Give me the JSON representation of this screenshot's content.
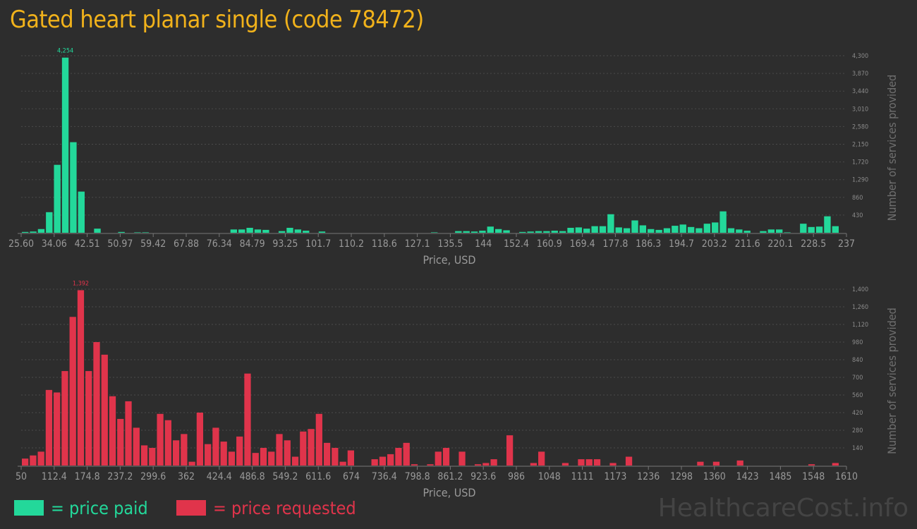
{
  "title": "Gated heart planar single (code 78472)",
  "legend": {
    "paid": "= price paid",
    "requested": "= price requested"
  },
  "watermark": "HealthcareCost.info",
  "colors": {
    "paid": "#23d89a",
    "requested": "#e0344b",
    "title": "#f1b21b",
    "background": "#2d2d2d"
  },
  "chart_data": [
    {
      "type": "bar",
      "series": [
        {
          "name": "price paid",
          "values": [
            20,
            30,
            90,
            500,
            1650,
            4254,
            2200,
            1000,
            0,
            100,
            0,
            0,
            20,
            0,
            10,
            10,
            0,
            0,
            0,
            0,
            0,
            0,
            0,
            0,
            0,
            0,
            80,
            80,
            120,
            80,
            70,
            0,
            40,
            120,
            80,
            50,
            0,
            30,
            0,
            0,
            0,
            0,
            0,
            0,
            0,
            0,
            0,
            0,
            0,
            0,
            0,
            10,
            0,
            0,
            40,
            40,
            30,
            50,
            150,
            90,
            60,
            0,
            20,
            30,
            40,
            40,
            50,
            40,
            120,
            130,
            100,
            160,
            160,
            450,
            130,
            110,
            300,
            180,
            90,
            70,
            110,
            170,
            200,
            140,
            110,
            220,
            250,
            520,
            110,
            80,
            50,
            0,
            40,
            80,
            80,
            10,
            0,
            220,
            140,
            150,
            400,
            160
          ]
        }
      ],
      "x_tick_labels": [
        "25.60",
        "34.06",
        "42.51",
        "50.97",
        "59.42",
        "67.88",
        "76.34",
        "84.79",
        "93.25",
        "101.7",
        "110.2",
        "118.6",
        "127.1",
        "135.5",
        "144",
        "152.4",
        "160.9",
        "169.4",
        "177.8",
        "186.3",
        "194.7",
        "203.2",
        "211.6",
        "220.1",
        "228.5",
        "237"
      ],
      "y_ticks": [
        "430",
        "860",
        "1,290",
        "1,720",
        "2,150",
        "2,580",
        "3,010",
        "3,440",
        "3,870",
        "4,300"
      ],
      "ylim": [
        0,
        4300
      ],
      "peak_label": "4,254",
      "xlabel": "Price, USD",
      "ylabel": "Number of services provided",
      "grid": true
    },
    {
      "type": "bar",
      "series": [
        {
          "name": "price requested",
          "values": [
            55,
            80,
            110,
            600,
            580,
            750,
            1180,
            1392,
            750,
            980,
            880,
            550,
            370,
            510,
            300,
            160,
            140,
            410,
            360,
            200,
            250,
            30,
            420,
            170,
            300,
            190,
            110,
            230,
            730,
            100,
            140,
            110,
            250,
            200,
            70,
            270,
            290,
            410,
            180,
            140,
            30,
            120,
            0,
            0,
            50,
            70,
            90,
            140,
            180,
            10,
            0,
            10,
            110,
            140,
            0,
            110,
            0,
            10,
            20,
            50,
            0,
            240,
            0,
            0,
            20,
            110,
            0,
            0,
            20,
            0,
            50,
            50,
            50,
            0,
            20,
            0,
            70,
            0,
            0,
            0,
            0,
            0,
            0,
            0,
            0,
            30,
            0,
            30,
            0,
            0,
            40,
            0,
            0,
            0,
            0,
            0,
            0,
            0,
            0,
            10,
            0,
            0,
            20
          ]
        }
      ],
      "x_tick_labels": [
        "50",
        "112.4",
        "174.8",
        "237.2",
        "299.6",
        "362",
        "424.4",
        "486.8",
        "549.2",
        "611.6",
        "674",
        "736.4",
        "798.8",
        "861.2",
        "923.6",
        "986",
        "1048",
        "1111",
        "1173",
        "1236",
        "1298",
        "1360",
        "1423",
        "1485",
        "1548",
        "1610"
      ],
      "y_ticks": [
        "140",
        "280",
        "420",
        "560",
        "700",
        "840",
        "980",
        "1,120",
        "1,260",
        "1,400"
      ],
      "ylim": [
        0,
        1400
      ],
      "peak_label": "1,392",
      "xlabel": "Price, USD",
      "ylabel": "Number of services provided",
      "grid": true
    }
  ]
}
